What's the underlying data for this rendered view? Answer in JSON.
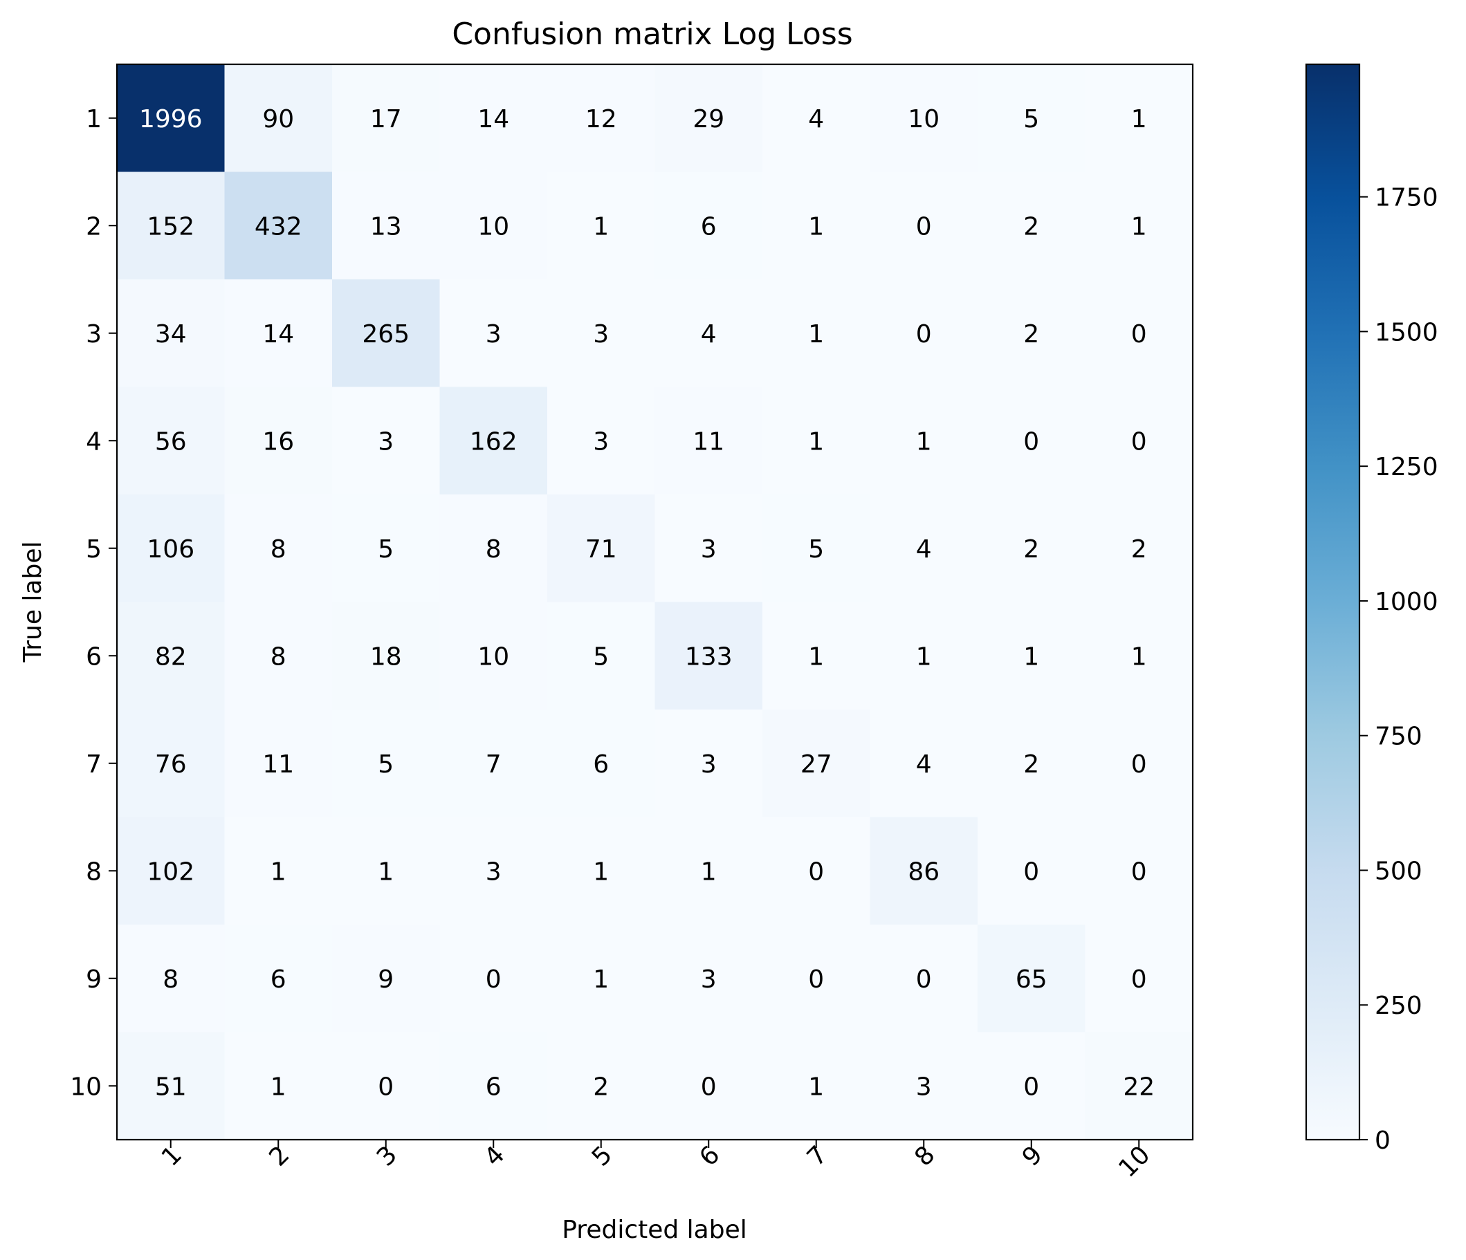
{
  "chart_data": {
    "type": "heatmap",
    "title": "Confusion matrix Log Loss",
    "xlabel": "Predicted label",
    "ylabel": "True label",
    "x_categories": [
      "1",
      "2",
      "3",
      "4",
      "5",
      "6",
      "7",
      "8",
      "9",
      "10"
    ],
    "y_categories": [
      "1",
      "2",
      "3",
      "4",
      "5",
      "6",
      "7",
      "8",
      "9",
      "10"
    ],
    "x_tick_rotation_deg": 45,
    "values": [
      [
        1996,
        90,
        17,
        14,
        12,
        29,
        4,
        10,
        5,
        1
      ],
      [
        152,
        432,
        13,
        10,
        1,
        6,
        1,
        0,
        2,
        1
      ],
      [
        34,
        14,
        265,
        3,
        3,
        4,
        1,
        0,
        2,
        0
      ],
      [
        56,
        16,
        3,
        162,
        3,
        11,
        1,
        1,
        0,
        0
      ],
      [
        106,
        8,
        5,
        8,
        71,
        3,
        5,
        4,
        2,
        2
      ],
      [
        82,
        8,
        18,
        10,
        5,
        133,
        1,
        1,
        1,
        1
      ],
      [
        76,
        11,
        5,
        7,
        6,
        3,
        27,
        4,
        2,
        0
      ],
      [
        102,
        1,
        1,
        3,
        1,
        1,
        0,
        86,
        0,
        0
      ],
      [
        8,
        6,
        9,
        0,
        1,
        3,
        0,
        0,
        65,
        0
      ],
      [
        51,
        1,
        0,
        6,
        2,
        0,
        1,
        3,
        0,
        22
      ]
    ],
    "colormap": "Blues",
    "colormap_stops": [
      "#f7fbff",
      "#deebf7",
      "#c6dbef",
      "#9ecae1",
      "#6baed6",
      "#4292c6",
      "#2171b5",
      "#08519c",
      "#08306b"
    ],
    "text_color_light": "#ffffff",
    "text_color_dark": "#000000",
    "colorbar": {
      "range": [
        0,
        1996
      ],
      "ticks": [
        0,
        250,
        500,
        750,
        1000,
        1250,
        1500,
        1750
      ],
      "tick_labels": [
        "0",
        "250",
        "500",
        "750",
        "1000",
        "1250",
        "1500",
        "1750"
      ]
    },
    "grid": false,
    "legend": "colorbar-right"
  }
}
